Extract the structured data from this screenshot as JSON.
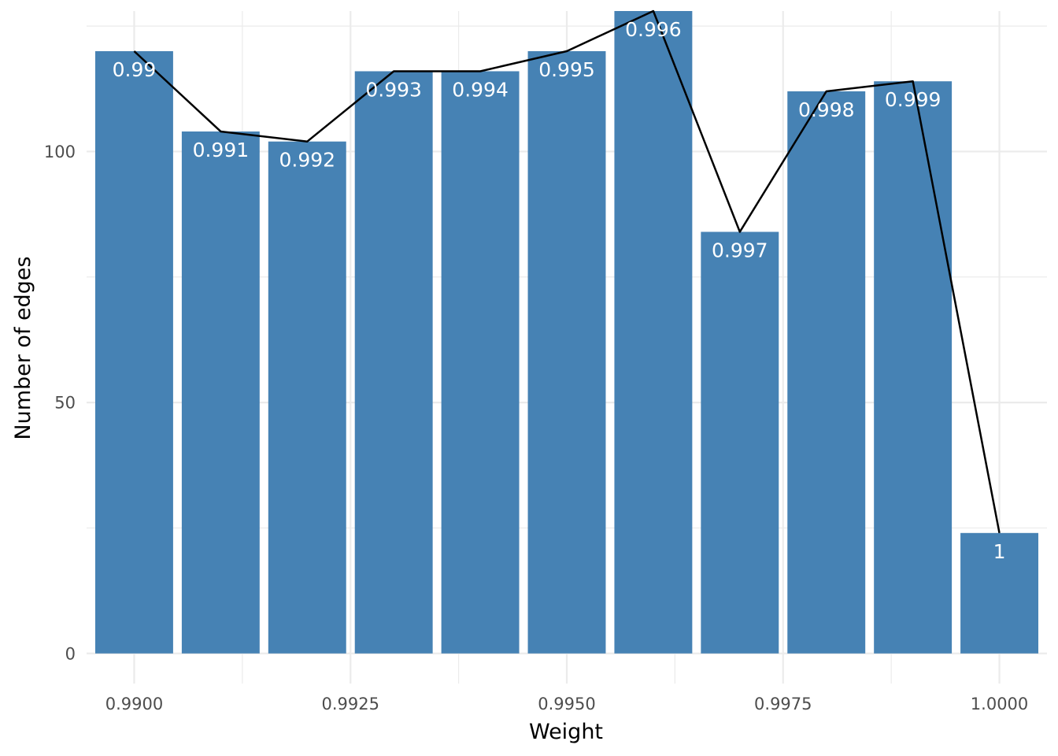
{
  "chart_data": {
    "type": "bar",
    "title": "",
    "xlabel": "Weight",
    "ylabel": "Number of edges",
    "x": [
      0.99,
      0.991,
      0.992,
      0.993,
      0.994,
      0.995,
      0.996,
      0.997,
      0.998,
      0.999,
      1.0
    ],
    "values": [
      120,
      104,
      102,
      116,
      116,
      120,
      128,
      84,
      112,
      114,
      24
    ],
    "bar_labels": [
      "0.99",
      "0.991",
      "0.992",
      "0.993",
      "0.994",
      "0.995",
      "0.996",
      "0.997",
      "0.998",
      "0.999",
      "1"
    ],
    "line_overlay": true,
    "xlim": [
      0.98945,
      1.00055
    ],
    "ylim": [
      -6,
      128
    ],
    "x_ticks": [
      0.99,
      0.9925,
      0.995,
      0.9975,
      1.0
    ],
    "x_tick_labels": [
      "0.9900",
      "0.9925",
      "0.9950",
      "0.9975",
      "1.0000"
    ],
    "y_ticks": [
      0,
      50,
      100
    ],
    "y_tick_labels": [
      "0",
      "50",
      "100"
    ],
    "grid": true,
    "legend": "none",
    "colors": {
      "bar": "#4682b4",
      "line": "#000000",
      "grid": "#ebebeb",
      "bar_label": "#ffffff"
    }
  }
}
